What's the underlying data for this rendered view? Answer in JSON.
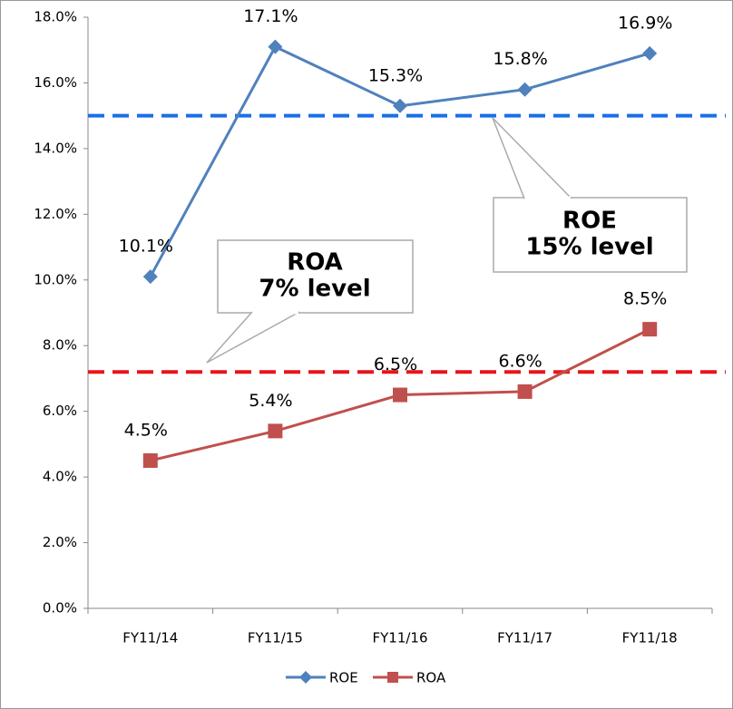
{
  "chart_data": {
    "type": "line",
    "categories": [
      "FY11/14",
      "FY11/15",
      "FY11/16",
      "FY11/17",
      "FY11/18"
    ],
    "series": [
      {
        "name": "ROE",
        "color": "#4f81bd",
        "marker": "diamond",
        "values": [
          10.1,
          17.1,
          15.3,
          15.8,
          16.9
        ],
        "value_labels": [
          "10.1%",
          "17.1%",
          "15.3%",
          "15.8%",
          "16.9%"
        ]
      },
      {
        "name": "ROA",
        "color": "#c0504d",
        "marker": "square",
        "values": [
          4.5,
          5.4,
          6.5,
          6.6,
          8.5
        ],
        "value_labels": [
          "4.5%",
          "5.4%",
          "6.5%",
          "6.6%",
          "8.5%"
        ]
      }
    ],
    "ylim": [
      0,
      18
    ],
    "yticks": [
      {
        "value": 0,
        "label": "0.0%"
      },
      {
        "value": 2,
        "label": "2.0%"
      },
      {
        "value": 4,
        "label": "4.0%"
      },
      {
        "value": 6,
        "label": "6.0%"
      },
      {
        "value": 8,
        "label": "8.0%"
      },
      {
        "value": 10,
        "label": "10.0%"
      },
      {
        "value": 12,
        "label": "12.0%"
      },
      {
        "value": 14,
        "label": "14.0%"
      },
      {
        "value": 16,
        "label": "16.0%"
      },
      {
        "value": 18,
        "label": "18.0%"
      }
    ],
    "reference_lines": [
      {
        "value": 15,
        "color": "#1a6fe8"
      },
      {
        "value": 7.2,
        "color": "#e8141a"
      }
    ],
    "annotations": [
      {
        "lines": [
          "ROE",
          "15% level"
        ]
      },
      {
        "lines": [
          "ROA",
          "7% level"
        ]
      }
    ],
    "legend": "bottom"
  }
}
